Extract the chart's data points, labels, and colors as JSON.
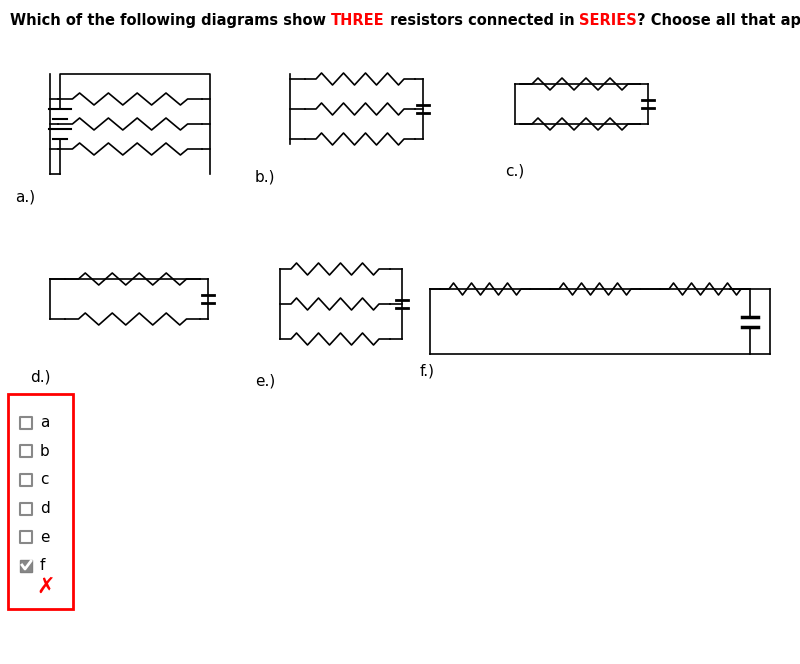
{
  "title_parts": [
    {
      "text": "Which of the following diagrams show ",
      "color": "black",
      "bold": true
    },
    {
      "text": "THREE",
      "color": "red",
      "bold": true
    },
    {
      "text": " resistors connected in ",
      "color": "black",
      "bold": true
    },
    {
      "text": "SERIES",
      "color": "red",
      "bold": true
    },
    {
      "text": "? Choose all that apply.",
      "color": "black",
      "bold": true
    }
  ],
  "checkboxes": [
    "a",
    "b",
    "c",
    "d",
    "e",
    "f"
  ],
  "checked": [
    "f"
  ],
  "wrong_answer": true,
  "background": "#ffffff"
}
